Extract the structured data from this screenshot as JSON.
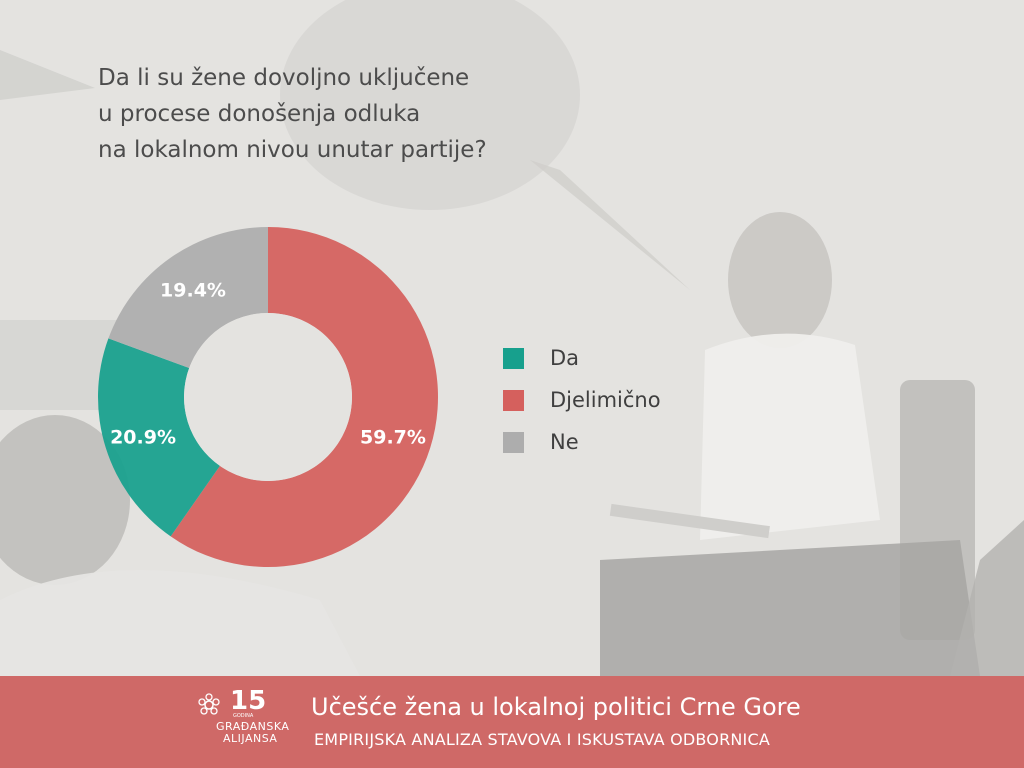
{
  "question": {
    "lines": [
      "Da li su žene dovoljno uključene",
      "u procese donošenja odluka",
      "na lokalnom nivou unutar partije?"
    ]
  },
  "chart_data": {
    "type": "pie",
    "donut": true,
    "categories": [
      "Da",
      "Djelimično",
      "Ne"
    ],
    "values": [
      20.9,
      59.7,
      19.4
    ],
    "labels": [
      "20.9%",
      "59.7%",
      "19.4%"
    ],
    "colors": [
      "#17a08d",
      "#d5605d",
      "#adadad"
    ],
    "start": "12 o'clock",
    "order_clockwise": [
      "Djelimično",
      "Da",
      "Ne"
    ],
    "legend_position": "right"
  },
  "legend": {
    "items": [
      {
        "label": "Da",
        "color": "#17a08d"
      },
      {
        "label": "Djelimično",
        "color": "#d5605d"
      },
      {
        "label": "Ne",
        "color": "#adadad"
      }
    ]
  },
  "footer": {
    "title": "Učešće žena u lokalnoj politici Crne Gore",
    "subtitle": "EMPIRIJSKA ANALIZA STAVOVA I ISKUSTAVA ODBORNICA",
    "logo": {
      "number": "15",
      "godina": "GODINA",
      "name_line1": "GRAĐANSKA",
      "name_line2": "ALIJANSA"
    }
  },
  "colors": {
    "footer_bg": "#cd605e",
    "text": "#4c4c4c"
  }
}
